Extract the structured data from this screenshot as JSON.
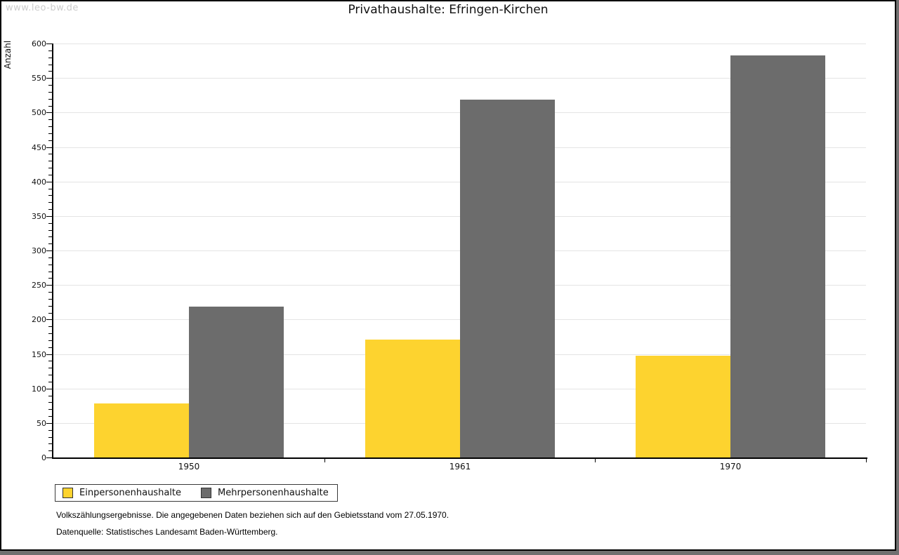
{
  "watermark": "www.leo-bw.de",
  "title": "Privathaushalte: Efringen-Kirchen",
  "chart_data": {
    "type": "bar",
    "title": "Privathaushalte: Efringen-Kirchen",
    "xlabel": "",
    "ylabel": "Anzahl",
    "categories": [
      "1950",
      "1961",
      "1970"
    ],
    "series": [
      {
        "name": "Einpersonenhaushalte",
        "color": "#FDD32F",
        "values": [
          78,
          171,
          147
        ]
      },
      {
        "name": "Mehrpersonenhaushalte",
        "color": "#6C6C6C",
        "values": [
          219,
          519,
          583
        ]
      }
    ],
    "ylim": [
      0,
      600
    ],
    "ytick_step": 50,
    "minor_tick_step": 10,
    "grid": true,
    "gridline_color": "#e4e4e4",
    "legend_position": "bottom-left"
  },
  "footnotes": {
    "line1": "Volkszählungsergebnisse. Die angegebenen Daten beziehen sich auf den Gebietsstand vom 27.05.1970.",
    "line2": "Datenquelle: Statistisches Landesamt Baden-Württemberg."
  }
}
